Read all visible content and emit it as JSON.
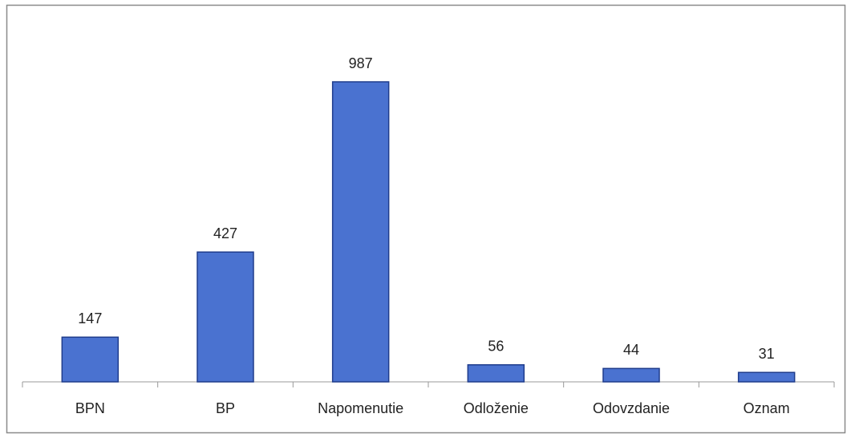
{
  "chart_data": {
    "type": "bar",
    "categories": [
      "BPN",
      "BP",
      "Napomenutie",
      "Odloženie",
      "Odovzdanie",
      "Oznam"
    ],
    "values": [
      147,
      427,
      987,
      56,
      44,
      31
    ],
    "color": "#4a72d0"
  }
}
